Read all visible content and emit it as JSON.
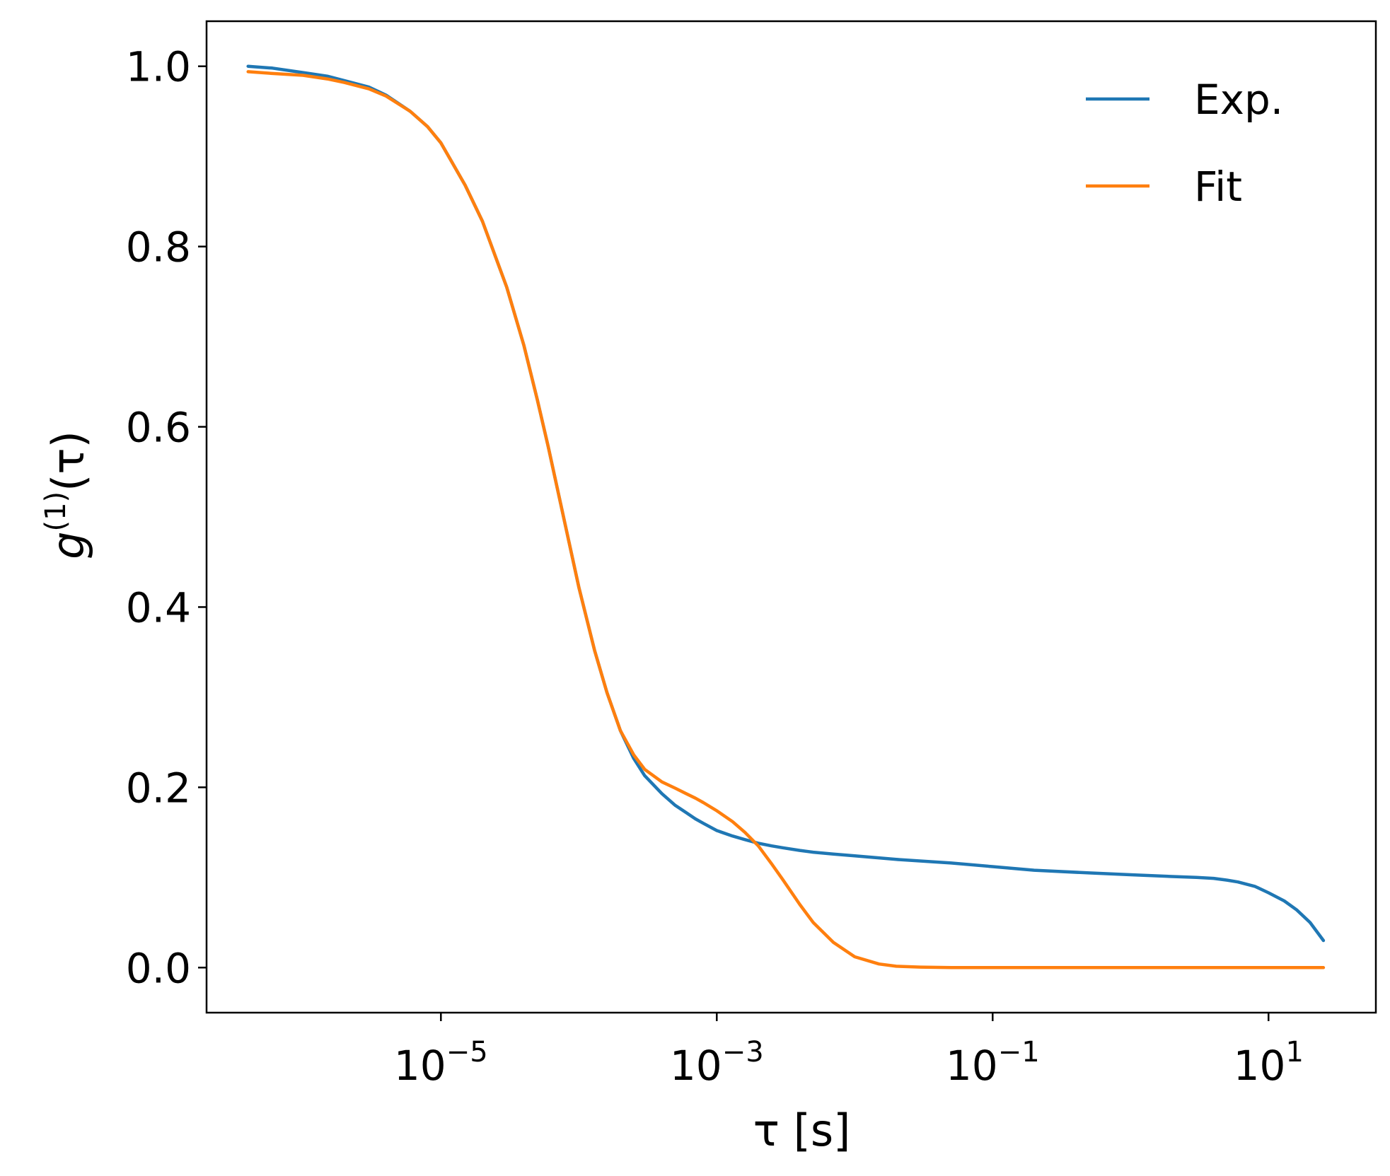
{
  "chart_data": {
    "type": "line",
    "title": "",
    "xlabel": "τ [s]",
    "ylabel": "g(1)(τ)",
    "ylabel_parts": {
      "base": "g",
      "sup": "(1)",
      "arg": "(τ)"
    },
    "xscale": "log",
    "xlim": [
      2e-07,
      60
    ],
    "ylim": [
      -0.05,
      1.05
    ],
    "x_ticks": [
      {
        "value": 1e-05,
        "base": "10",
        "exp": "−5"
      },
      {
        "value": 0.001,
        "base": "10",
        "exp": "−3"
      },
      {
        "value": 0.1,
        "base": "10",
        "exp": "−1"
      },
      {
        "value": 10,
        "base": "10",
        "exp": "1"
      }
    ],
    "y_ticks": [
      {
        "value": 0.0,
        "label": "0.0"
      },
      {
        "value": 0.2,
        "label": "0.2"
      },
      {
        "value": 0.4,
        "label": "0.4"
      },
      {
        "value": 0.6,
        "label": "0.6"
      },
      {
        "value": 0.8,
        "label": "0.8"
      },
      {
        "value": 1.0,
        "label": "1.0"
      }
    ],
    "grid": false,
    "legend_position": "top-right",
    "series": [
      {
        "name": "Exp.",
        "color": "#1f77b4",
        "x": [
          4e-07,
          6e-07,
          1e-06,
          1.5e-06,
          2e-06,
          3e-06,
          4e-06,
          6e-06,
          8e-06,
          1e-05,
          1.5e-05,
          2e-05,
          3e-05,
          4e-05,
          5e-05,
          6e-05,
          8e-05,
          0.0001,
          0.00013,
          0.00016,
          0.0002,
          0.00025,
          0.0003,
          0.0004,
          0.0005,
          0.0006,
          0.0007,
          0.0008,
          0.001,
          0.0013,
          0.0016,
          0.002,
          0.0025,
          0.003,
          0.004,
          0.005,
          0.007,
          0.01,
          0.02,
          0.05,
          0.1,
          0.2,
          0.5,
          1,
          2,
          3,
          4,
          5,
          6,
          8,
          10,
          13,
          16,
          20,
          25
        ],
        "y": [
          1.0,
          0.998,
          0.993,
          0.989,
          0.984,
          0.977,
          0.968,
          0.95,
          0.933,
          0.915,
          0.868,
          0.828,
          0.755,
          0.69,
          0.63,
          0.578,
          0.49,
          0.422,
          0.352,
          0.305,
          0.263,
          0.232,
          0.213,
          0.193,
          0.18,
          0.172,
          0.165,
          0.16,
          0.152,
          0.146,
          0.142,
          0.138,
          0.135,
          0.133,
          0.13,
          0.128,
          0.126,
          0.124,
          0.12,
          0.116,
          0.112,
          0.108,
          0.105,
          0.103,
          0.101,
          0.1,
          0.099,
          0.097,
          0.095,
          0.09,
          0.083,
          0.074,
          0.064,
          0.05,
          0.03
        ]
      },
      {
        "name": "Fit",
        "color": "#ff7f0e",
        "x": [
          4e-07,
          6e-07,
          1e-06,
          1.5e-06,
          2e-06,
          3e-06,
          4e-06,
          6e-06,
          8e-06,
          1e-05,
          1.5e-05,
          2e-05,
          3e-05,
          4e-05,
          5e-05,
          6e-05,
          8e-05,
          0.0001,
          0.00013,
          0.00016,
          0.0002,
          0.00025,
          0.0003,
          0.0004,
          0.0005,
          0.0006,
          0.0007,
          0.0008,
          0.001,
          0.0013,
          0.0016,
          0.002,
          0.0025,
          0.003,
          0.004,
          0.005,
          0.007,
          0.01,
          0.015,
          0.02,
          0.03,
          0.05,
          0.1,
          1,
          10,
          25
        ],
        "y": [
          0.994,
          0.992,
          0.99,
          0.986,
          0.982,
          0.975,
          0.967,
          0.95,
          0.933,
          0.915,
          0.868,
          0.828,
          0.755,
          0.69,
          0.63,
          0.578,
          0.49,
          0.422,
          0.352,
          0.305,
          0.263,
          0.236,
          0.22,
          0.206,
          0.199,
          0.193,
          0.188,
          0.183,
          0.174,
          0.162,
          0.15,
          0.135,
          0.115,
          0.098,
          0.07,
          0.05,
          0.028,
          0.012,
          0.004,
          0.0015,
          0.0005,
          0.0,
          0.0,
          0.0,
          0.0,
          0.0
        ]
      }
    ]
  }
}
